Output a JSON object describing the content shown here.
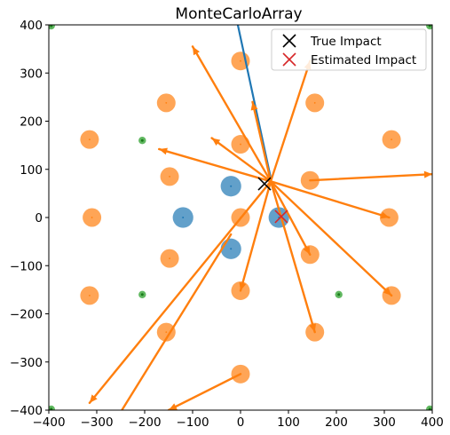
{
  "chart_data": {
    "type": "scatter",
    "title": "MonteCarloArray",
    "xlabel": "",
    "ylabel": "",
    "xlim": [
      -400,
      400
    ],
    "ylim": [
      -400,
      400
    ],
    "xticks": [
      -400,
      -300,
      -200,
      -100,
      0,
      100,
      200,
      300,
      400
    ],
    "yticks": [
      -400,
      -300,
      -200,
      -100,
      0,
      100,
      200,
      300,
      400
    ],
    "grid": false,
    "legend": {
      "placement": "top-right",
      "entries": [
        {
          "label": "True Impact",
          "marker": "x",
          "color": "#000000"
        },
        {
          "label": "Estimated Impact",
          "marker": "x",
          "color": "#d62728"
        }
      ]
    },
    "colors": {
      "blue": "#1f77b4",
      "orange": "#ff7f0e",
      "green": "#2ca02c",
      "red": "#d62728",
      "black": "#000000"
    },
    "blue_circles": [
      {
        "x": -120,
        "y": 0,
        "r": 38
      },
      {
        "x": -20,
        "y": 65,
        "r": 38
      },
      {
        "x": -20,
        "y": -65,
        "r": 38
      },
      {
        "x": 80,
        "y": 0,
        "r": 38
      }
    ],
    "orange_circles": [
      {
        "x": 0,
        "y": 325
      },
      {
        "x": -155,
        "y": 238
      },
      {
        "x": 155,
        "y": 238
      },
      {
        "x": -315,
        "y": 162
      },
      {
        "x": 315,
        "y": 162
      },
      {
        "x": 0,
        "y": 152
      },
      {
        "x": -148,
        "y": 85
      },
      {
        "x": 145,
        "y": 77
      },
      {
        "x": -310,
        "y": 0
      },
      {
        "x": 0,
        "y": 0
      },
      {
        "x": 310,
        "y": 0
      },
      {
        "x": -148,
        "y": -85
      },
      {
        "x": 145,
        "y": -77
      },
      {
        "x": 0,
        "y": -152
      },
      {
        "x": -315,
        "y": -162
      },
      {
        "x": 315,
        "y": -162
      },
      {
        "x": -155,
        "y": -238
      },
      {
        "x": 155,
        "y": -238
      },
      {
        "x": 0,
        "y": -325
      }
    ],
    "orange_circle_radius": 19,
    "green_points": [
      {
        "x": -395,
        "y": 398
      },
      {
        "x": 395,
        "y": 398
      },
      {
        "x": -205,
        "y": 160
      },
      {
        "x": -205,
        "y": -160
      },
      {
        "x": 205,
        "y": -160
      },
      {
        "x": -395,
        "y": -398
      },
      {
        "x": 395,
        "y": -398
      }
    ],
    "blue_line": [
      {
        "x": -10,
        "y": 420
      },
      {
        "x": 63,
        "y": 82
      }
    ],
    "orange_arrows": [
      {
        "x1": 63,
        "y1": 75,
        "x2": -100,
        "y2": 355
      },
      {
        "x1": 63,
        "y1": 75,
        "x2": 25,
        "y2": 240
      },
      {
        "x1": 63,
        "y1": 75,
        "x2": 145,
        "y2": 325
      },
      {
        "x1": 63,
        "y1": 75,
        "x2": -60,
        "y2": 165
      },
      {
        "x1": 63,
        "y1": 75,
        "x2": -170,
        "y2": 142
      },
      {
        "x1": 145,
        "y1": 77,
        "x2": 400,
        "y2": 90
      },
      {
        "x1": 63,
        "y1": 75,
        "x2": 310,
        "y2": 0
      },
      {
        "x1": 63,
        "y1": 75,
        "x2": 315,
        "y2": -162
      },
      {
        "x1": 63,
        "y1": 75,
        "x2": 155,
        "y2": -238
      },
      {
        "x1": 63,
        "y1": 75,
        "x2": 145,
        "y2": -77
      },
      {
        "x1": 63,
        "y1": 75,
        "x2": 0,
        "y2": -152
      },
      {
        "x1": 63,
        "y1": 75,
        "x2": -315,
        "y2": -385
      },
      {
        "x1": -20,
        "y1": -35,
        "x2": -260,
        "y2": -420
      },
      {
        "x1": 0,
        "y1": -325,
        "x2": -150,
        "y2": -400
      }
    ],
    "true_impact": {
      "x": 50,
      "y": 70
    },
    "estimated_impact": {
      "x": 85,
      "y": 2
    }
  }
}
